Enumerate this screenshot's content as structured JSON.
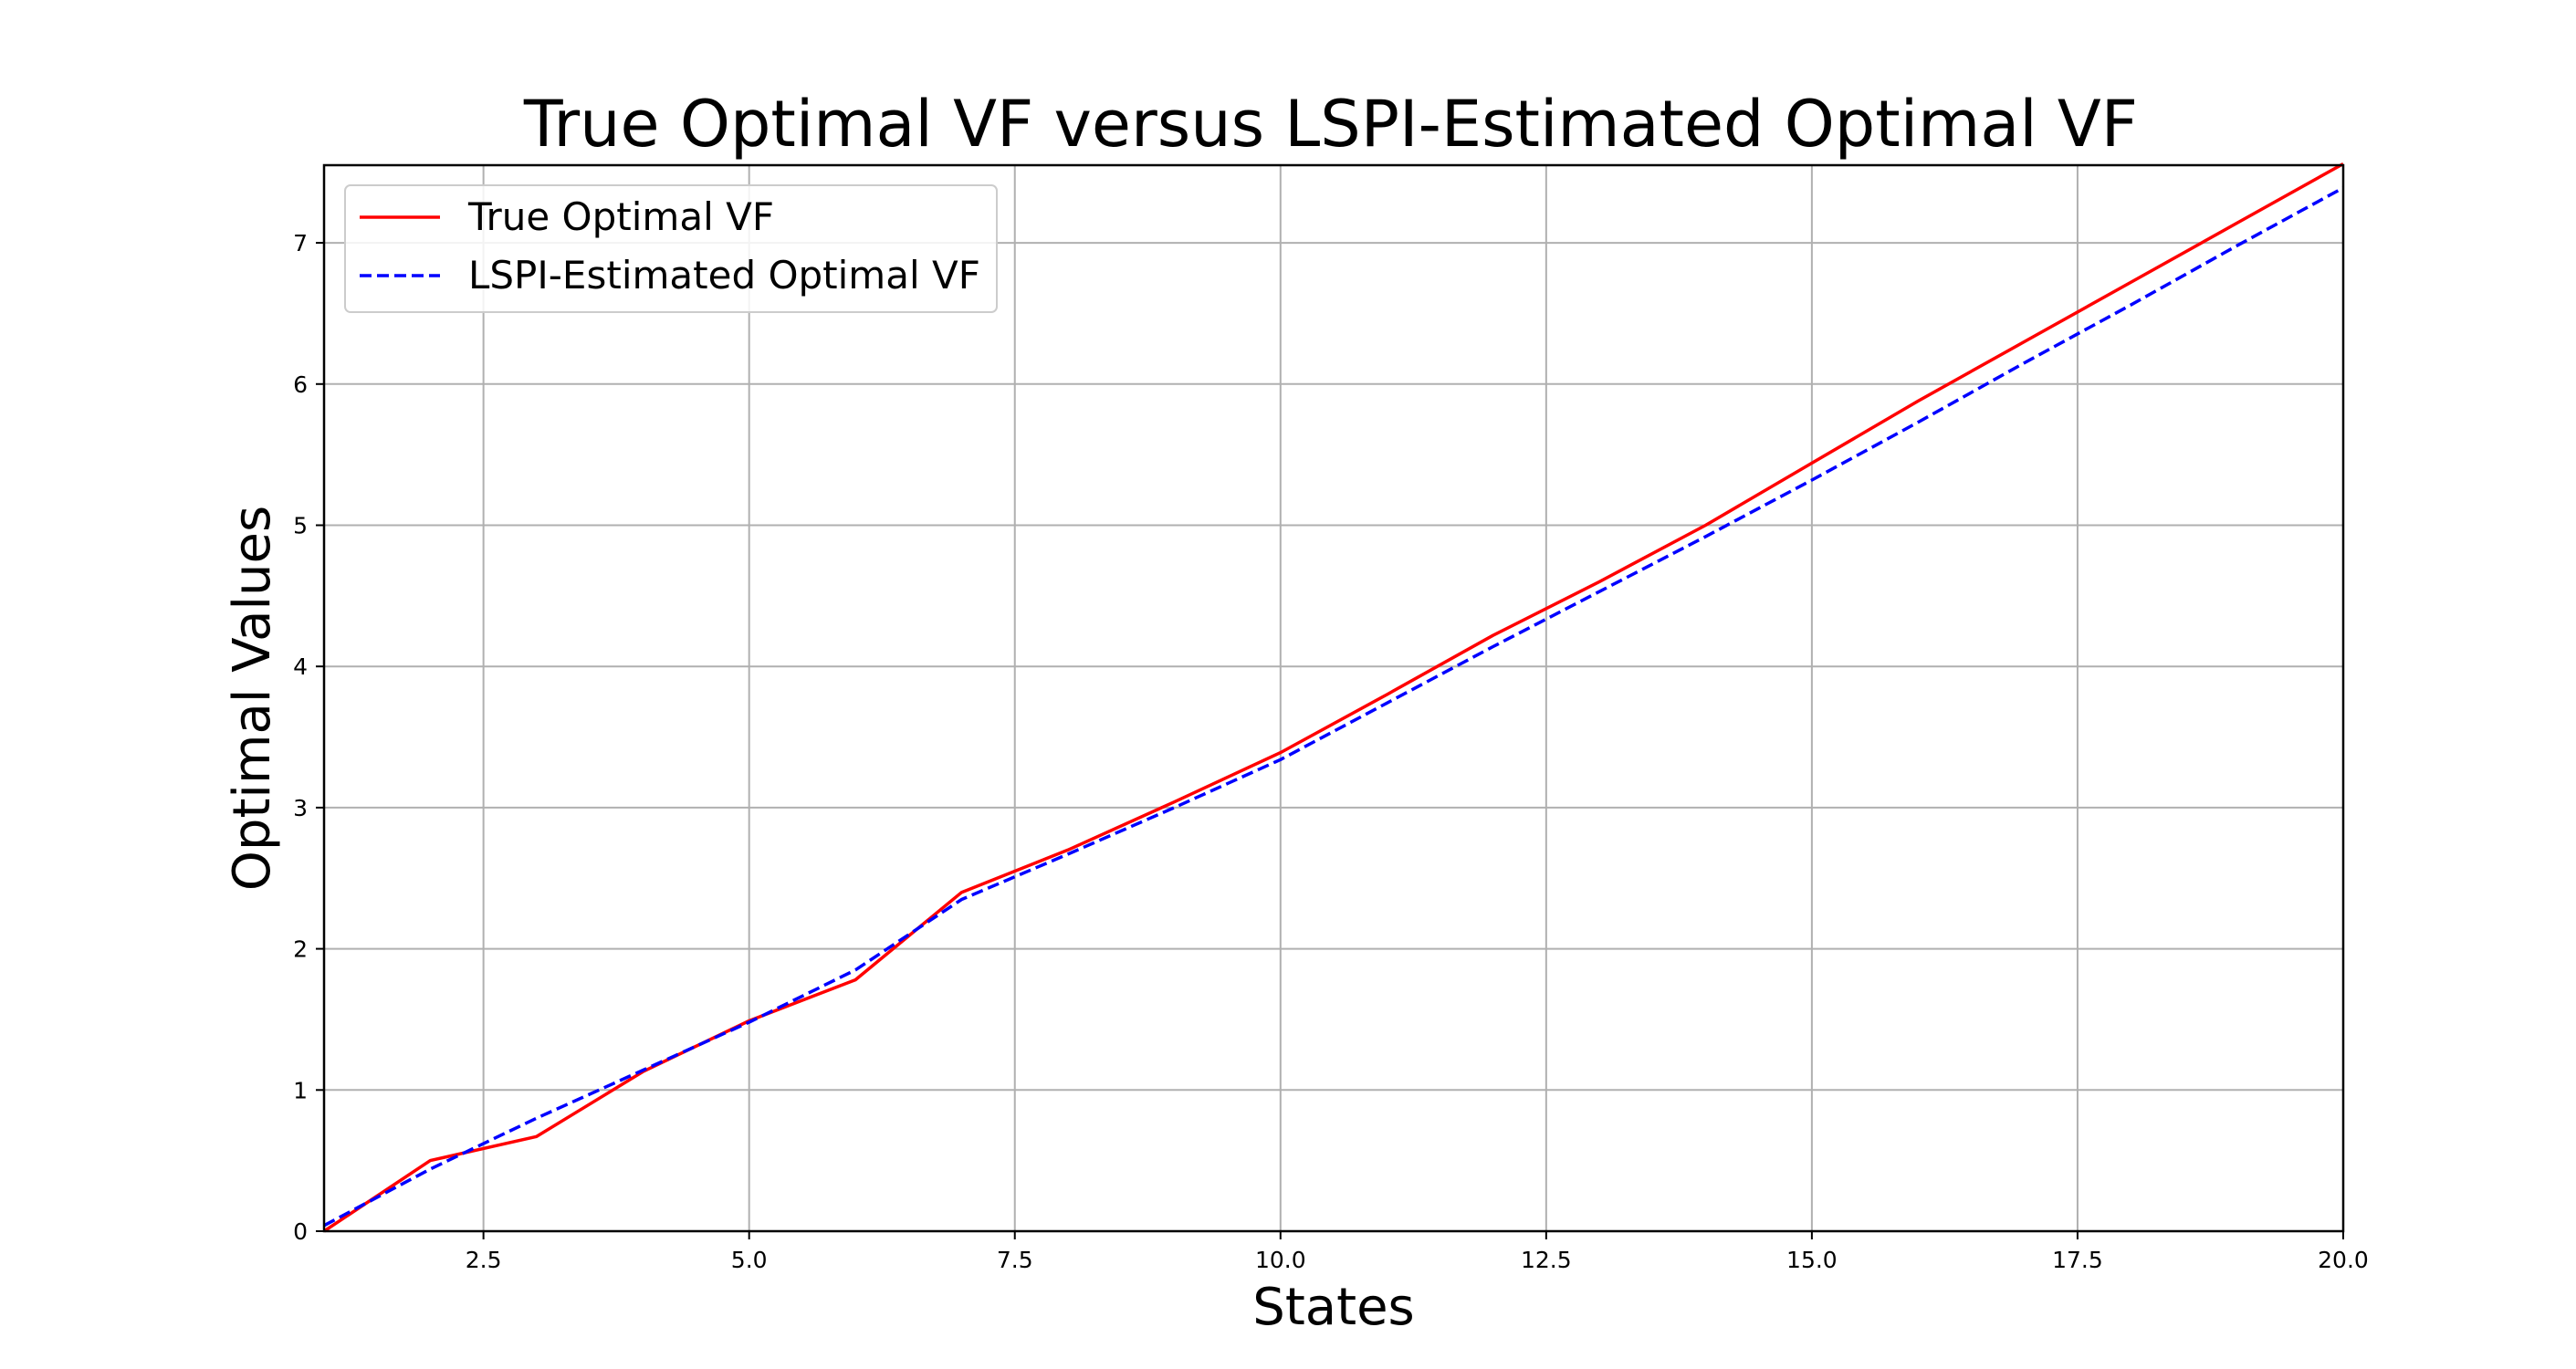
{
  "chart_data": {
    "type": "line",
    "title": "True Optimal VF versus LSPI-Estimated Optimal VF",
    "xlabel": "States",
    "ylabel": "Optimal Values",
    "xlim": [
      1,
      20
    ],
    "ylim": [
      0,
      7.55
    ],
    "x_ticks": [
      2.5,
      5.0,
      7.5,
      10.0,
      12.5,
      15.0,
      17.5,
      20.0
    ],
    "x_tick_labels": [
      "2.5",
      "5.0",
      "7.5",
      "10.0",
      "12.5",
      "15.0",
      "17.5",
      "20.0"
    ],
    "y_ticks": [
      0,
      1,
      2,
      3,
      4,
      5,
      6,
      7
    ],
    "y_tick_labels": [
      "0",
      "1",
      "2",
      "3",
      "4",
      "5",
      "6",
      "7"
    ],
    "grid": true,
    "legend_position": "top-left",
    "x": [
      1,
      2,
      3,
      4,
      5,
      6,
      7,
      8,
      9,
      10,
      11,
      12,
      13,
      14,
      15,
      16,
      17,
      18,
      19,
      20
    ],
    "series": [
      {
        "name": "True Optimal VF",
        "color": "#ff0000",
        "line_style": "solid",
        "values": [
          0.0,
          0.5,
          0.67,
          1.13,
          1.49,
          1.78,
          2.4,
          2.7,
          3.04,
          3.39,
          3.8,
          4.22,
          4.6,
          5.0,
          5.44,
          5.88,
          6.3,
          6.72,
          7.14,
          7.56
        ]
      },
      {
        "name": "LSPI-Estimated Optimal VF",
        "color": "#0000ff",
        "line_style": "dashed",
        "values": [
          0.04,
          0.44,
          0.8,
          1.14,
          1.48,
          1.85,
          2.35,
          2.67,
          3.0,
          3.34,
          3.74,
          4.14,
          4.53,
          4.92,
          5.32,
          5.73,
          6.15,
          6.56,
          6.98,
          7.39
        ]
      }
    ]
  }
}
